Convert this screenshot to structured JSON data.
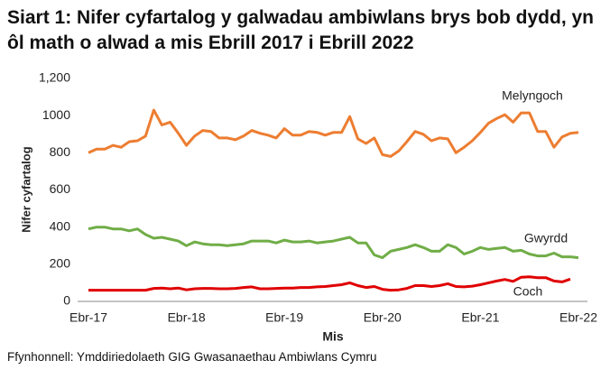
{
  "chart_data": {
    "type": "line",
    "title": "Siart 1: Nifer cyfartalog y galwadau ambiwlans brys bob dydd, yn ôl math o alwad a mis Ebrill 2017 i Ebrill 2022",
    "x_label": "Mis",
    "y_label": "Nifer cyfartalog",
    "source": "Ffynhonnell: Ymddiriedolaeth GIG Gwasanaethau Ambiwlans Cymru",
    "categories": [
      "Ebr-17",
      null,
      null,
      null,
      null,
      null,
      null,
      null,
      null,
      null,
      null,
      null,
      "Ebr-18",
      null,
      null,
      null,
      null,
      null,
      null,
      null,
      null,
      null,
      null,
      null,
      "Ebr-19",
      null,
      null,
      null,
      null,
      null,
      null,
      null,
      null,
      null,
      null,
      null,
      "Ebr-20",
      null,
      null,
      null,
      null,
      null,
      null,
      null,
      null,
      null,
      null,
      null,
      "Ebr-21",
      null,
      null,
      null,
      null,
      null,
      null,
      null,
      null,
      null,
      null,
      null,
      "Ebr-22"
    ],
    "series": [
      {
        "name": "Melyngoch",
        "color": "#ed7d31",
        "values": [
          800,
          820,
          820,
          840,
          830,
          860,
          865,
          890,
          1030,
          950,
          965,
          905,
          840,
          890,
          920,
          915,
          880,
          880,
          870,
          890,
          920,
          905,
          895,
          880,
          930,
          895,
          895,
          915,
          910,
          895,
          910,
          910,
          995,
          875,
          850,
          880,
          790,
          780,
          810,
          860,
          915,
          900,
          865,
          880,
          875,
          800,
          830,
          865,
          910,
          960,
          985,
          1005,
          965,
          1015,
          1015,
          915,
          915,
          830,
          885,
          905,
          910
        ]
      },
      {
        "name": "Gwyrdd",
        "color": "#70ad47",
        "values": [
          390,
          400,
          400,
          390,
          390,
          380,
          390,
          360,
          340,
          345,
          335,
          325,
          300,
          320,
          310,
          305,
          305,
          300,
          305,
          310,
          325,
          325,
          325,
          315,
          330,
          320,
          320,
          325,
          315,
          320,
          325,
          335,
          345,
          315,
          315,
          250,
          235,
          270,
          280,
          290,
          305,
          290,
          270,
          270,
          305,
          290,
          255,
          270,
          290,
          280,
          285,
          290,
          270,
          275,
          255,
          245,
          245,
          260,
          240,
          240,
          235
        ]
      },
      {
        "name": "Coch",
        "color": "#e00000",
        "values": [
          60,
          60,
          60,
          60,
          60,
          60,
          60,
          60,
          70,
          72,
          68,
          72,
          62,
          68,
          70,
          70,
          68,
          68,
          70,
          75,
          78,
          68,
          68,
          70,
          72,
          72,
          75,
          75,
          78,
          80,
          85,
          90,
          100,
          85,
          75,
          80,
          65,
          60,
          62,
          70,
          85,
          85,
          80,
          85,
          95,
          80,
          78,
          82,
          90,
          100,
          110,
          118,
          108,
          130,
          132,
          128,
          128,
          110,
          105,
          120,
          null
        ]
      }
    ],
    "ylim": [
      0,
      1200
    ],
    "yticks": [
      0,
      200,
      400,
      600,
      800,
      1000,
      {
        "value": 1200,
        "label": "1,200"
      }
    ],
    "grid": false
  }
}
